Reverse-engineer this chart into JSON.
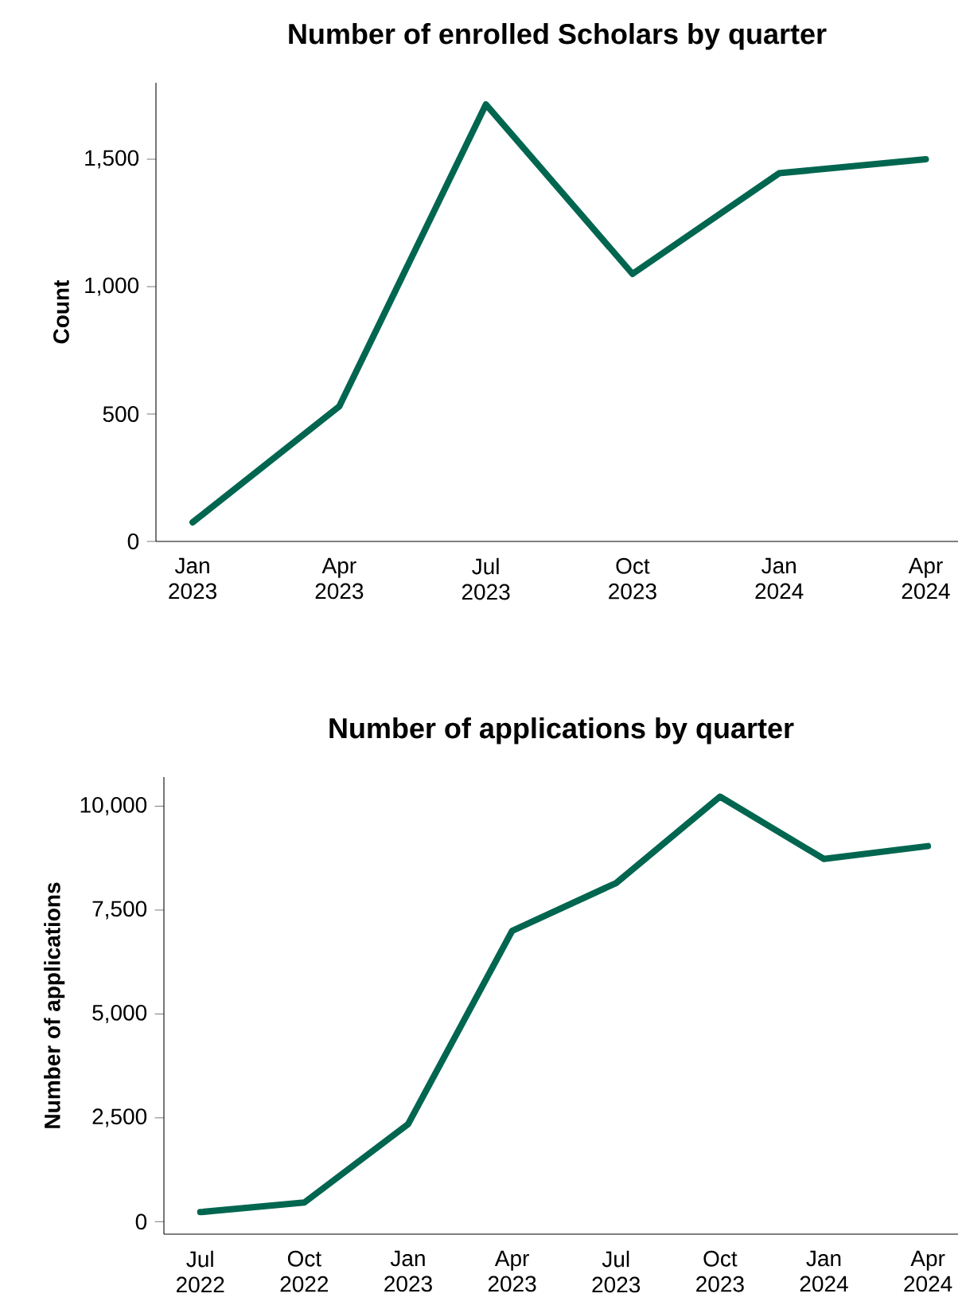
{
  "chart_data": [
    {
      "type": "line",
      "title": "Number of enrolled Scholars by quarter",
      "ylabel": "Count",
      "categories": [
        "Jan 2023",
        "Apr 2023",
        "Jul 2023",
        "Oct 2023",
        "Jan 2024",
        "Apr 2024"
      ],
      "series": [
        {
          "color": "#00664f",
          "values": [
            75,
            530,
            1715,
            1050,
            1445,
            1500
          ]
        }
      ],
      "ylim": [
        0,
        1800
      ],
      "yticks": [
        0,
        500,
        {
          "value": 1000,
          "label": "1,000"
        },
        {
          "value": 1500,
          "label": "1,500"
        }
      ],
      "grid": false
    },
    {
      "type": "line",
      "title": "Number of applications by quarter",
      "ylabel": "Number of applications",
      "categories": [
        "Jul 2022",
        "Oct 2022",
        "Jan 2023",
        "Apr 2023",
        "Jul 2023",
        "Oct 2023",
        "Jan 2024",
        "Apr 2024"
      ],
      "series": [
        {
          "color": "#00664f",
          "values": [
            230,
            460,
            2350,
            7000,
            8150,
            10230,
            8730,
            9040
          ]
        }
      ],
      "ylim": [
        -300,
        10700
      ],
      "yticks": [
        0,
        {
          "value": 2500,
          "label": "2,500"
        },
        {
          "value": 5000,
          "label": "5,000"
        },
        {
          "value": 7500,
          "label": "7,500"
        },
        {
          "value": 10000,
          "label": "10,000"
        }
      ],
      "grid": false
    }
  ]
}
